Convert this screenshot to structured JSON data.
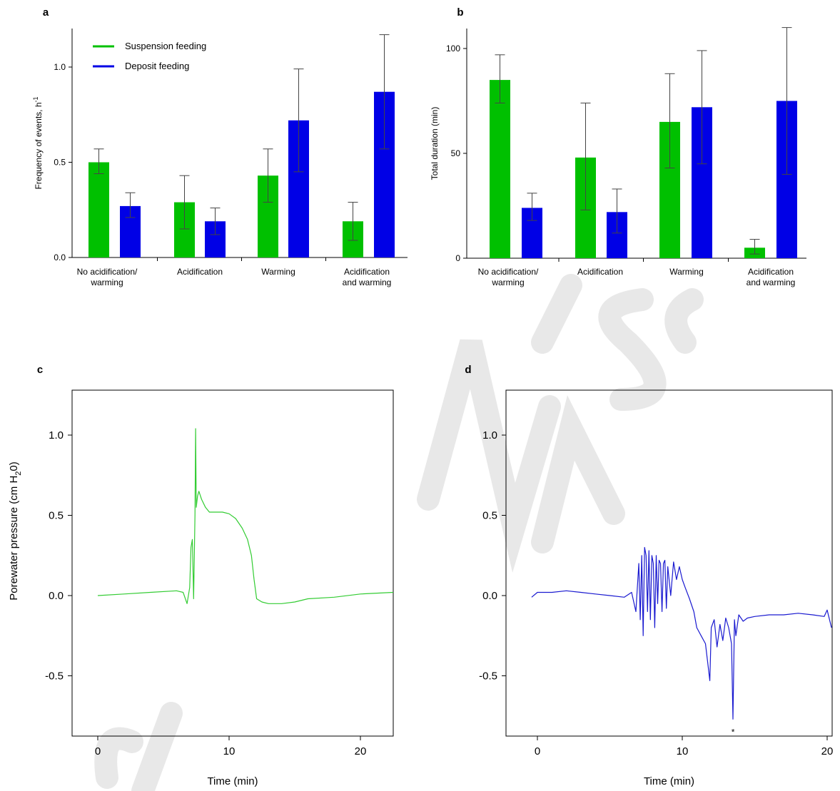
{
  "colors": {
    "suspension": "#00c000",
    "deposit": "#0000e6",
    "trace_c": "#33cc33",
    "trace_d": "#1a1ad0"
  },
  "chart_data": [
    {
      "panel": "a",
      "type": "bar",
      "categories": [
        [
          "No acidification/",
          "warming"
        ],
        [
          "Acidification"
        ],
        [
          "Warming"
        ],
        [
          "Acidification",
          "and warming"
        ]
      ],
      "series": [
        {
          "name": "Suspension feeding",
          "values": [
            0.5,
            0.29,
            0.43,
            0.19
          ],
          "err_low": [
            0.44,
            0.15,
            0.29,
            0.09
          ],
          "err_high": [
            0.57,
            0.43,
            0.57,
            0.29
          ]
        },
        {
          "name": "Deposit feeding",
          "values": [
            0.27,
            0.19,
            0.72,
            0.87
          ],
          "err_low": [
            0.21,
            0.12,
            0.45,
            0.57
          ],
          "err_high": [
            0.34,
            0.26,
            0.99,
            1.17
          ]
        }
      ],
      "ylabel": "Frequency of events, h",
      "ylabel_sup": "-1",
      "ylim": [
        0,
        1.2
      ],
      "yticks": [
        "0.0",
        "0.5",
        "1.0"
      ],
      "legend": "top-left"
    },
    {
      "panel": "b",
      "type": "bar",
      "categories": [
        [
          "No acidification/",
          "warming"
        ],
        [
          "Acidification"
        ],
        [
          "Warming"
        ],
        [
          "Acidification",
          "and warming"
        ]
      ],
      "series": [
        {
          "name": "Suspension feeding",
          "values": [
            85,
            48,
            65,
            5
          ],
          "err_low": [
            74,
            23,
            43,
            2
          ],
          "err_high": [
            97,
            74,
            88,
            9
          ]
        },
        {
          "name": "Deposit feeding",
          "values": [
            24,
            22,
            72,
            75
          ],
          "err_low": [
            18,
            12,
            45,
            40
          ],
          "err_high": [
            31,
            33,
            99,
            110
          ]
        }
      ],
      "ylabel": "Total duration (min)",
      "ylim": [
        0,
        110
      ],
      "yticks": [
        "0",
        "50",
        "100"
      ]
    },
    {
      "panel": "c",
      "type": "line",
      "xlabel": "Time (min)",
      "ylabel": "Porewater pressure (cm H",
      "ylabel_sub": "2",
      "ylabel_end": "0)",
      "xlim": [
        -1.8,
        22.6
      ],
      "ylim": [
        -0.88,
        1.28
      ],
      "xticks": [
        "0",
        "10",
        "20"
      ],
      "yticks": [
        "-0.5",
        "0.0",
        "0.5",
        "1.0"
      ],
      "x": [
        0,
        2,
        4,
        6,
        6.5,
        6.8,
        7.0,
        7.1,
        7.2,
        7.3,
        7.4,
        7.45,
        7.5,
        7.6,
        7.7,
        7.9,
        8.2,
        8.5,
        9,
        9.5,
        10,
        10.5,
        11,
        11.4,
        11.7,
        11.9,
        12.1,
        12.5,
        13,
        14,
        15,
        16,
        18,
        20,
        22.5
      ],
      "y": [
        0.0,
        0.01,
        0.02,
        0.03,
        0.02,
        -0.05,
        0.05,
        0.3,
        0.35,
        -0.02,
        0.5,
        1.04,
        0.55,
        0.62,
        0.65,
        0.6,
        0.55,
        0.52,
        0.52,
        0.52,
        0.51,
        0.48,
        0.42,
        0.35,
        0.25,
        0.1,
        -0.02,
        -0.04,
        -0.05,
        -0.05,
        -0.04,
        -0.02,
        -0.01,
        0.01,
        0.02
      ]
    },
    {
      "panel": "d",
      "type": "line",
      "xlabel": "Time (min)",
      "xlim": [
        -1.8,
        20.3
      ],
      "ylim": [
        -0.88,
        1.28
      ],
      "xticks": [
        "0",
        "10",
        "20"
      ],
      "yticks": [
        "-0.5",
        "0.0",
        "0.5",
        "1.0"
      ],
      "x": [
        -0.4,
        0,
        1,
        2,
        3,
        4,
        5,
        6,
        6.5,
        6.8,
        7.0,
        7.1,
        7.2,
        7.3,
        7.4,
        7.5,
        7.6,
        7.7,
        7.8,
        7.9,
        8.0,
        8.1,
        8.2,
        8.3,
        8.4,
        8.5,
        8.6,
        8.7,
        8.8,
        8.9,
        9.0,
        9.2,
        9.4,
        9.6,
        9.8,
        10.0,
        10.2,
        10.5,
        10.8,
        11.0,
        11.3,
        11.6,
        11.8,
        11.9,
        12.0,
        12.2,
        12.4,
        12.6,
        12.8,
        13.0,
        13.2,
        13.4,
        13.5,
        13.6,
        13.7,
        13.9,
        14.2,
        14.5,
        15,
        16,
        17,
        18,
        19,
        19.8,
        20.0,
        20.3
      ],
      "y": [
        -0.01,
        0.02,
        0.02,
        0.03,
        0.02,
        0.01,
        0.0,
        -0.01,
        0.02,
        -0.1,
        0.2,
        -0.15,
        0.25,
        -0.25,
        0.3,
        0.25,
        -0.1,
        0.28,
        -0.15,
        0.25,
        0.2,
        -0.2,
        0.25,
        -0.05,
        0.22,
        0.2,
        -0.1,
        0.2,
        0.22,
        -0.08,
        0.18,
        0.0,
        0.21,
        0.1,
        0.18,
        0.1,
        0.05,
        -0.02,
        -0.1,
        -0.2,
        -0.25,
        -0.3,
        -0.45,
        -0.53,
        -0.2,
        -0.15,
        -0.32,
        -0.18,
        -0.28,
        -0.14,
        -0.2,
        -0.3,
        -0.77,
        -0.15,
        -0.25,
        -0.12,
        -0.16,
        -0.14,
        -0.13,
        -0.12,
        -0.12,
        -0.11,
        -0.12,
        -0.13,
        -0.09,
        -0.2
      ],
      "annotation": {
        "text": "*",
        "x": 13.5,
        "y": -0.77
      }
    }
  ]
}
